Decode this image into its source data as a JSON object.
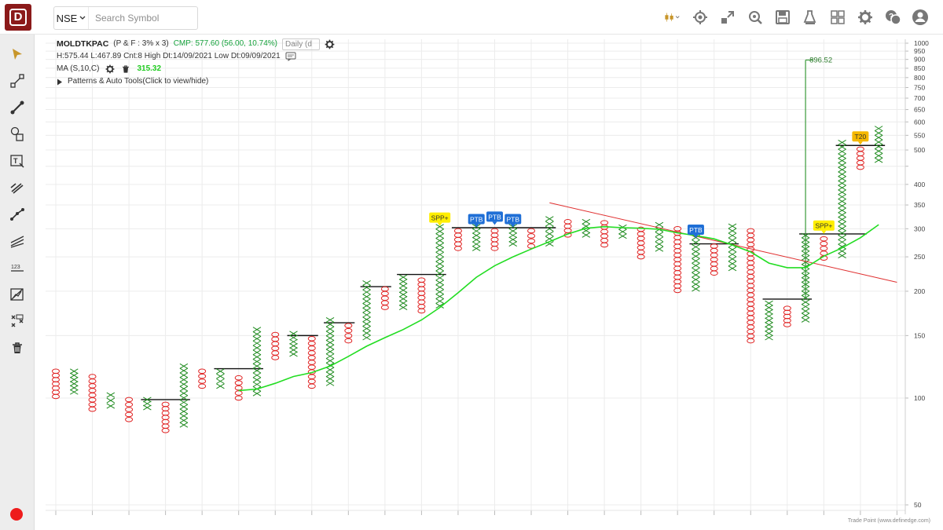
{
  "header": {
    "exchange": "NSE",
    "search_placeholder": "Search Symbol"
  },
  "toolbar_icons": [
    "candlestick-icon",
    "chart-settings-icon",
    "resize-icon",
    "zoom-settings-icon",
    "save-icon",
    "scanner-icon",
    "layout-grid-icon",
    "settings-icon",
    "help-chat-icon",
    "user-icon"
  ],
  "sidebar_icons": [
    "pointer-icon",
    "line-tool-icon",
    "trendline-icon",
    "shapes-icon",
    "text-tool-icon",
    "fib-tool-icon",
    "path-tool-icon",
    "channel-tool-icon",
    "measure-icon",
    "projection-icon",
    "pattern-tool-icon",
    "delete-icon"
  ],
  "info": {
    "symbol": "MOLDTKPAC",
    "chart_params": "(P & F : 3% x 3)",
    "cmp": "CMP: 577.60 (56.00, 10.74%)",
    "timeframe": "Daily (d",
    "stats": "H:575.44 L:467.89 Cnt:8 High Dt:14/09/2021 Low Dt:09/09/2021",
    "ma_label": "MA (S,10,C)",
    "ma_value": "315.32",
    "patterns": "Patterns & Auto Tools(Click to view/hide)"
  },
  "footer": "Trade Point (www.definedge.com)",
  "colors": {
    "x_col": "#1e8a1e",
    "o_col": "#e02020",
    "ma_line": "#22dd22",
    "trend_line": "#e03030",
    "ptb_badge": "#1f6fd6",
    "spp_badge": "#ffee00",
    "t20_badge": "#f5b800",
    "target_line": "#3a9a3a"
  },
  "chart_data": {
    "type": "point-and-figure",
    "price_axis": {
      "scale": "log",
      "range": [
        50,
        1000
      ],
      "ticks": [
        50,
        100,
        150,
        200,
        250,
        300,
        350,
        400,
        450,
        500,
        550,
        600,
        650,
        700,
        750,
        800,
        850,
        900,
        950,
        1000
      ],
      "tick_labels": [
        "50",
        "100",
        "150",
        "200",
        "250",
        "300",
        "350",
        "400",
        "",
        "500",
        "550",
        "600",
        "650",
        "700",
        "750",
        "800",
        "850",
        "900",
        "950",
        "1000"
      ]
    },
    "columns": [
      {
        "t": "O",
        "hi": 119,
        "lo": 101
      },
      {
        "t": "X",
        "hi": 119,
        "lo": 104
      },
      {
        "t": "O",
        "hi": 115,
        "lo": 93
      },
      {
        "t": "X",
        "hi": 102,
        "lo": 95
      },
      {
        "t": "O",
        "hi": 99,
        "lo": 87
      },
      {
        "t": "X",
        "hi": 99,
        "lo": 94
      },
      {
        "t": "O",
        "hi": 96,
        "lo": 81
      },
      {
        "t": "X",
        "hi": 123,
        "lo": 84
      },
      {
        "t": "O",
        "hi": 119,
        "lo": 108
      },
      {
        "t": "X",
        "hi": 119,
        "lo": 108
      },
      {
        "t": "O",
        "hi": 114,
        "lo": 100
      },
      {
        "t": "X",
        "hi": 156,
        "lo": 103
      },
      {
        "t": "O",
        "hi": 151,
        "lo": 130
      },
      {
        "t": "X",
        "hi": 152,
        "lo": 133
      },
      {
        "t": "O",
        "hi": 147,
        "lo": 108
      },
      {
        "t": "X",
        "hi": 166,
        "lo": 110
      },
      {
        "t": "O",
        "hi": 160,
        "lo": 145
      },
      {
        "t": "X",
        "hi": 211,
        "lo": 148
      },
      {
        "t": "O",
        "hi": 203,
        "lo": 180
      },
      {
        "t": "X",
        "hi": 219,
        "lo": 180
      },
      {
        "t": "O",
        "hi": 215,
        "lo": 176
      },
      {
        "t": "X",
        "hi": 304,
        "lo": 182
      },
      {
        "t": "O",
        "hi": 296,
        "lo": 264
      },
      {
        "t": "X",
        "hi": 304,
        "lo": 264
      },
      {
        "t": "O",
        "hi": 296,
        "lo": 264
      },
      {
        "t": "X",
        "hi": 304,
        "lo": 272
      },
      {
        "t": "O",
        "hi": 296,
        "lo": 268
      },
      {
        "t": "X",
        "hi": 320,
        "lo": 272
      },
      {
        "t": "O",
        "hi": 314,
        "lo": 288
      },
      {
        "t": "X",
        "hi": 314,
        "lo": 288
      },
      {
        "t": "O",
        "hi": 312,
        "lo": 270
      },
      {
        "t": "X",
        "hi": 303,
        "lo": 286
      },
      {
        "t": "O",
        "hi": 299,
        "lo": 250
      },
      {
        "t": "X",
        "hi": 308,
        "lo": 263
      },
      {
        "t": "O",
        "hi": 300,
        "lo": 201
      },
      {
        "t": "X",
        "hi": 292,
        "lo": 203
      },
      {
        "t": "O",
        "hi": 268,
        "lo": 225
      },
      {
        "t": "X",
        "hi": 305,
        "lo": 232
      },
      {
        "t": "O",
        "hi": 296,
        "lo": 145
      },
      {
        "t": "X",
        "hi": 185,
        "lo": 148
      },
      {
        "t": "O",
        "hi": 179,
        "lo": 161
      },
      {
        "t": "X",
        "hi": 287,
        "lo": 166
      },
      {
        "t": "O",
        "hi": 281,
        "lo": 248
      },
      {
        "t": "X",
        "hi": 525,
        "lo": 252
      },
      {
        "t": "O",
        "hi": 503,
        "lo": 447
      },
      {
        "t": "X",
        "hi": 575,
        "lo": 468
      }
    ],
    "moving_average": {
      "name": "MA (S,10,C)",
      "value": 315.32,
      "points": [
        [
          10,
          105
        ],
        [
          11,
          106
        ],
        [
          12,
          110
        ],
        [
          13,
          115
        ],
        [
          14,
          118
        ],
        [
          15,
          123
        ],
        [
          16,
          131
        ],
        [
          17,
          140
        ],
        [
          18,
          148
        ],
        [
          19,
          156
        ],
        [
          20,
          166
        ],
        [
          21,
          180
        ],
        [
          22,
          198
        ],
        [
          23,
          219
        ],
        [
          24,
          236
        ],
        [
          25,
          250
        ],
        [
          26,
          263
        ],
        [
          27,
          276
        ],
        [
          28,
          290
        ],
        [
          29,
          301
        ],
        [
          30,
          304
        ],
        [
          31,
          302
        ],
        [
          32,
          301
        ],
        [
          33,
          299
        ],
        [
          34,
          292
        ],
        [
          35,
          287
        ],
        [
          36,
          281
        ],
        [
          37,
          270
        ],
        [
          38,
          258
        ],
        [
          39,
          240
        ],
        [
          40,
          233
        ],
        [
          41,
          233
        ],
        [
          42,
          251
        ],
        [
          43,
          265
        ],
        [
          44,
          283
        ],
        [
          45,
          308
        ]
      ]
    },
    "trend_line": {
      "from": [
        27,
        355
      ],
      "to": [
        46,
        212
      ]
    },
    "horizontal_levels": [
      {
        "c1": 5,
        "c2": 7,
        "price": 99
      },
      {
        "c1": 9,
        "c2": 11,
        "price": 121
      },
      {
        "c1": 13,
        "c2": 14,
        "price": 150
      },
      {
        "c1": 15,
        "c2": 16,
        "price": 163
      },
      {
        "c1": 17,
        "c2": 18,
        "price": 206
      },
      {
        "c1": 19,
        "c2": 21,
        "price": 223
      },
      {
        "c1": 22,
        "c2": 27,
        "price": 302
      },
      {
        "c1": 35,
        "c2": 37,
        "price": 272
      },
      {
        "c1": 39,
        "c2": 41,
        "price": 190
      },
      {
        "c1": 41,
        "c2": 44,
        "price": 290
      },
      {
        "c1": 43,
        "c2": 45,
        "price": 515
      }
    ],
    "target": {
      "col": 41,
      "from": 190,
      "to": 896.52,
      "label": "896.52"
    },
    "signals": [
      {
        "label": "SPP+",
        "col": 21,
        "price": 320,
        "kind": "spp"
      },
      {
        "label": "PTB",
        "col": 23,
        "price": 317,
        "kind": "ptb"
      },
      {
        "label": "PTB",
        "col": 24,
        "price": 322,
        "kind": "ptb"
      },
      {
        "label": "PTB",
        "col": 25,
        "price": 317,
        "kind": "ptb"
      },
      {
        "label": "PTB",
        "col": 35,
        "price": 296,
        "kind": "ptb"
      },
      {
        "label": "SPP+",
        "col": 42,
        "price": 304,
        "kind": "spp"
      },
      {
        "label": "T20",
        "col": 44,
        "price": 542,
        "kind": "t20"
      }
    ]
  }
}
